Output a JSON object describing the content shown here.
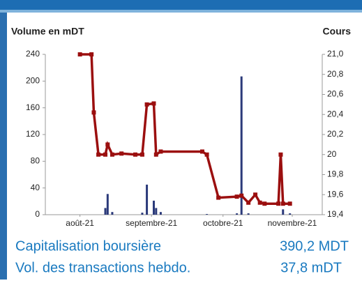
{
  "chart_data": {
    "type": "combo",
    "ylabel": "Volume en mDT",
    "y2label": "Cours",
    "xlim": [
      0,
      120
    ],
    "xticks": [
      {
        "value": 15,
        "label": "août-21"
      },
      {
        "value": 46,
        "label": "septembre-21"
      },
      {
        "value": 77,
        "label": "octobre-21"
      },
      {
        "value": 107,
        "label": "novembre-21"
      }
    ],
    "ylim": [
      0,
      240
    ],
    "yticks": [
      0,
      40,
      80,
      120,
      160,
      200,
      240
    ],
    "y2lim": [
      19.4,
      21.0
    ],
    "y2ticks": [
      {
        "value": 19.4,
        "label": "19,4"
      },
      {
        "value": 19.6,
        "label": "19,6"
      },
      {
        "value": 19.8,
        "label": "19,8"
      },
      20,
      {
        "value": 20.2,
        "label": "20,2"
      },
      {
        "value": 20.4,
        "label": "20,4"
      },
      {
        "value": 20.6,
        "label": "20,6"
      },
      {
        "value": 20.8,
        "label": "20,8"
      },
      {
        "value": 21.0,
        "label": "21,0"
      }
    ],
    "series": [
      {
        "type": "bar",
        "color": "#2b3a7a",
        "x": [
          26,
          27,
          29,
          42,
          44,
          47,
          48,
          50,
          70,
          83,
          85,
          88,
          103,
          106
        ],
        "values": [
          10,
          31,
          4,
          3,
          45,
          21,
          10,
          4,
          1,
          2,
          207,
          2,
          8,
          2
        ]
      },
      {
        "type": "line",
        "axis": "y2",
        "color": "#9b0f0f",
        "x": [
          15,
          20,
          21,
          23,
          26,
          27,
          29,
          33,
          39,
          42,
          44,
          47,
          48,
          50,
          68,
          70,
          75,
          83,
          85,
          88,
          91,
          93,
          95,
          101,
          102,
          103,
          106
        ],
        "values": [
          21.0,
          21.0,
          20.42,
          20.0,
          20.0,
          20.1,
          20.0,
          20.01,
          20.0,
          20.0,
          20.5,
          20.51,
          20.0,
          20.03,
          20.03,
          20.0,
          19.57,
          19.58,
          19.59,
          19.52,
          19.6,
          19.52,
          19.51,
          19.51,
          20.0,
          19.51,
          19.51
        ]
      }
    ]
  },
  "summary": [
    {
      "label": "Capitalisation boursière",
      "value": "390,2 MDT"
    },
    {
      "label": "Vol. des transactions hebdo.",
      "value": "37,8 mDT"
    }
  ]
}
